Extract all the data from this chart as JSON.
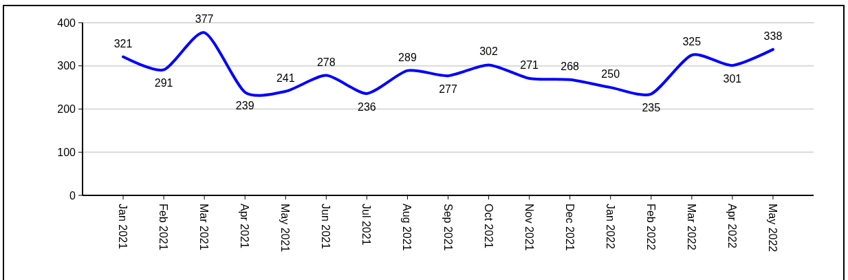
{
  "chart_data": {
    "type": "line",
    "categories": [
      "Jan 2021",
      "Feb 2021",
      "Mar 2021",
      "Apr 2021",
      "May 2021",
      "Jun 2021",
      "Jul 2021",
      "Aug 2021",
      "Sep 2021",
      "Oct 2021",
      "Nov 2021",
      "Dec 2021",
      "Jan 2022",
      "Feb 2022",
      "Mar 2022",
      "Apr 2022",
      "May 2022"
    ],
    "series": [
      {
        "color": "#0000ff",
        "values": [
          321,
          291,
          377,
          239,
          241,
          278,
          236,
          289,
          277,
          302,
          271,
          268,
          250,
          235,
          325,
          301,
          338
        ]
      }
    ],
    "ylim": [
      0,
      400
    ],
    "yticks": [
      0,
      100,
      200,
      300,
      400
    ],
    "grid": "y",
    "data_labels": true,
    "marker": "none",
    "line_style": "solid"
  }
}
